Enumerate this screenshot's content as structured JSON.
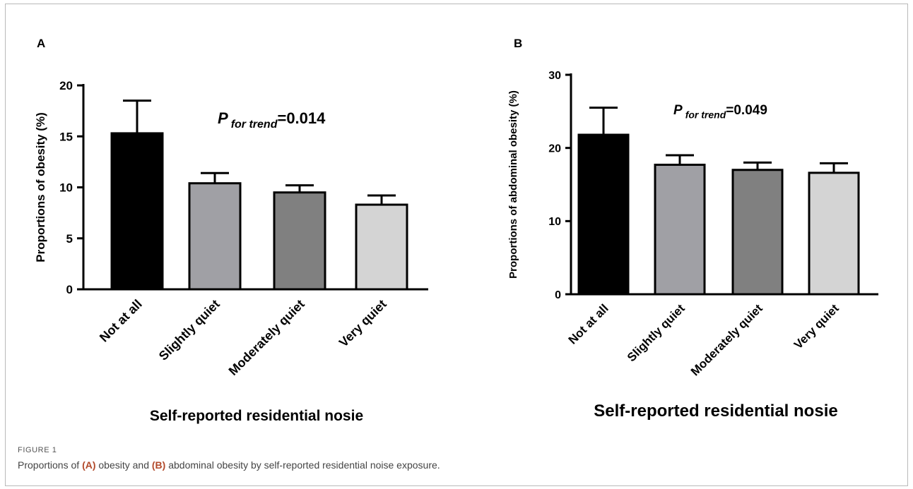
{
  "chart_data": [
    {
      "panel_label": "A",
      "type": "bar",
      "categories": [
        "Not at all",
        "Slightly quiet",
        "Moderately quiet",
        "Very quiet"
      ],
      "values": [
        15.3,
        10.4,
        9.5,
        8.3
      ],
      "error_upper": [
        18.5,
        11.4,
        10.2,
        9.2
      ],
      "colors": [
        "#000000",
        "#a0a0a5",
        "#808080",
        "#d4d4d4"
      ],
      "ylabel": "Proportions of  obesity (%)",
      "xlabel": "Self-reported residential  nosie",
      "ylim": [
        0,
        20
      ],
      "yticks": [
        0,
        5,
        10,
        15,
        20
      ],
      "annotation": {
        "p": "P",
        "subscript": "for trend",
        "value": "=0.014"
      }
    },
    {
      "panel_label": "B",
      "type": "bar",
      "categories": [
        "Not at all",
        "Slightly quiet",
        "Moderately quiet",
        "Very quiet"
      ],
      "values": [
        21.8,
        17.7,
        17.0,
        16.6
      ],
      "error_upper": [
        25.5,
        19.0,
        18.0,
        17.9
      ],
      "colors": [
        "#000000",
        "#a0a0a5",
        "#808080",
        "#d4d4d4"
      ],
      "ylabel": "Proportions of  abdominal obesity (%)",
      "xlabel": "Self-reported residential  nosie",
      "ylim": [
        0,
        30
      ],
      "yticks": [
        0,
        10,
        20,
        30
      ],
      "annotation": {
        "p": "P",
        "subscript": "for trend",
        "value": "=0.049"
      }
    }
  ],
  "caption": {
    "label": "FIGURE 1",
    "prefix": "Proportions of ",
    "a": "(A)",
    "mid": " obesity and ",
    "b": "(B)",
    "suffix": " abdominal obesity by self-reported residential noise exposure."
  }
}
